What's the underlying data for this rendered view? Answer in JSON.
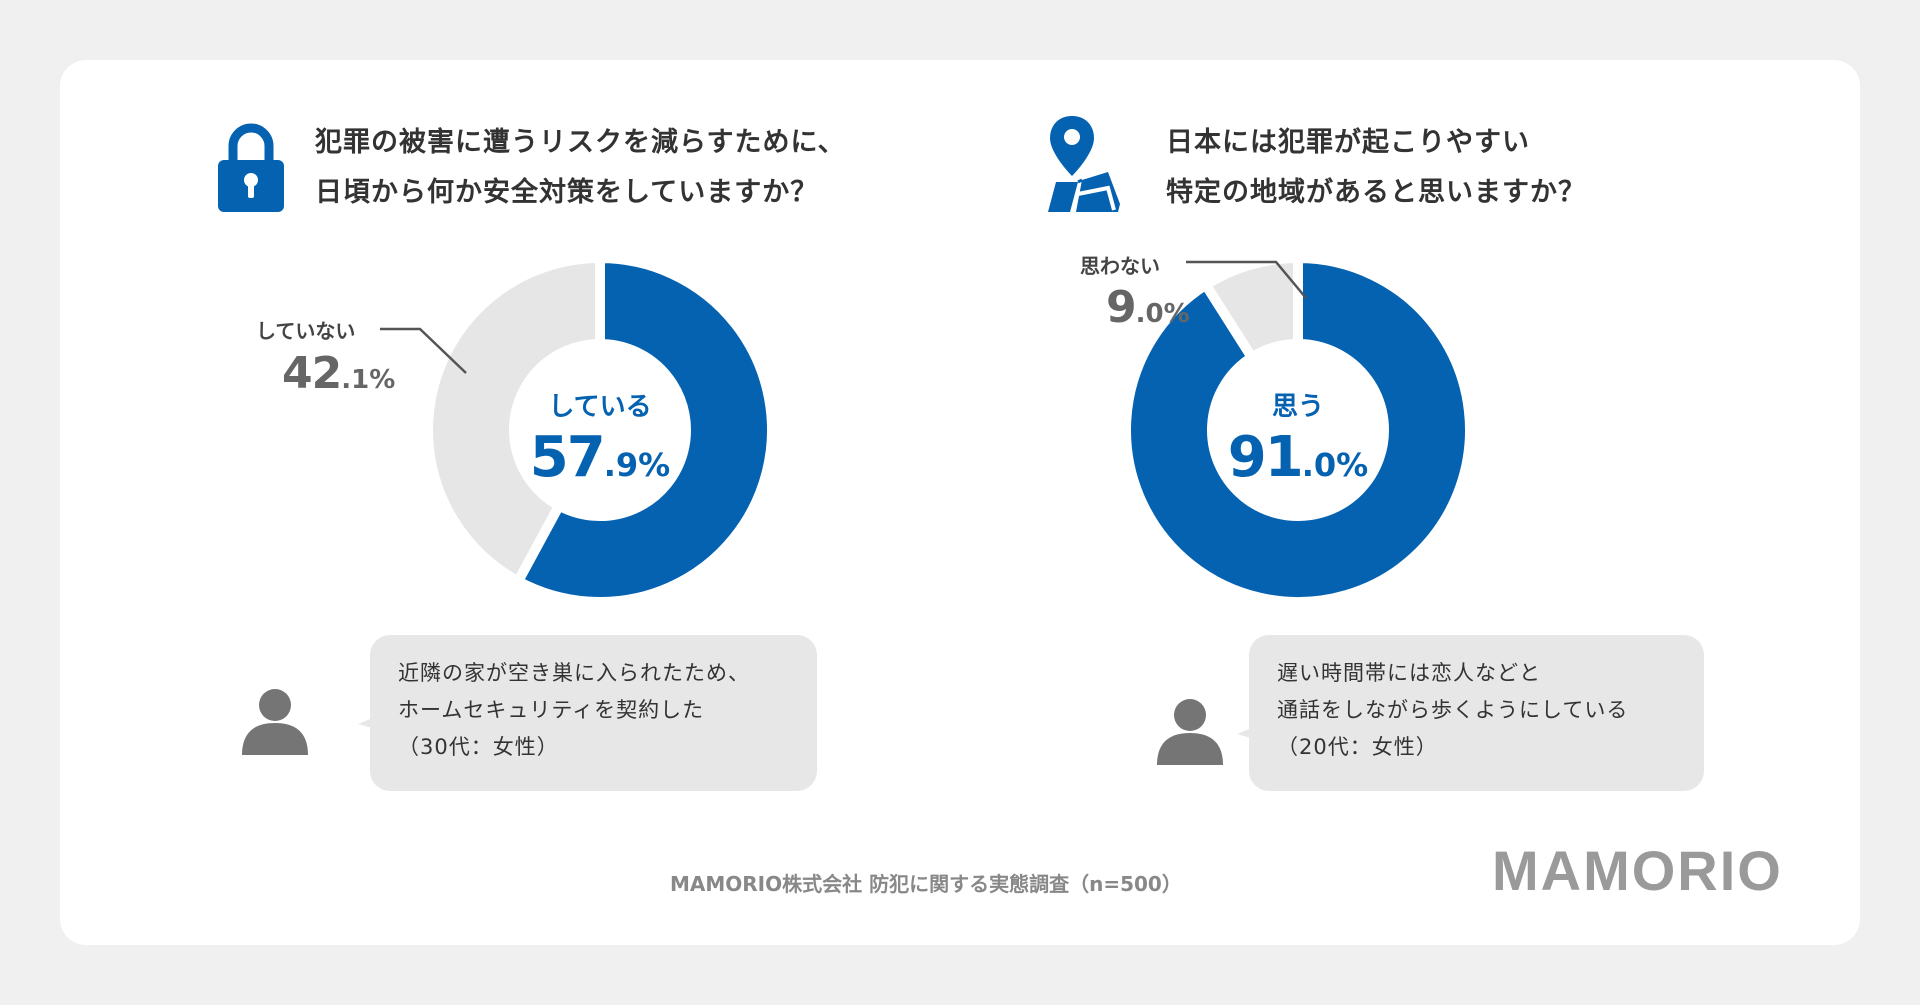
{
  "colors": {
    "primary": "#0562b1",
    "secondary": "#e6e6e6",
    "text_dark": "#333333",
    "text_gray": "#666666",
    "brand_gray": "#9a9a9a"
  },
  "chart_data": [
    {
      "type": "pie",
      "title_lines": [
        "犯罪の被害に遭うリスクを減らすために、",
        "日頃から何か安全対策をしていますか？"
      ],
      "icon": "lock-icon",
      "slices": [
        {
          "label": "している",
          "value": 57.9,
          "pct_int": "57",
          "pct_dec": ".9%",
          "color": "#0562b1"
        },
        {
          "label": "していない",
          "value": 42.1,
          "pct_int": "42",
          "pct_dec": ".1%",
          "color": "#e6e6e6"
        }
      ],
      "comment_lines": [
        "近隣の家が空き巣に入られたため、",
        "ホームセキュリティを契約した",
        "（30代：女性）"
      ]
    },
    {
      "type": "pie",
      "title_lines": [
        "日本には犯罪が起こりやすい",
        "特定の地域があると思いますか？"
      ],
      "icon": "map-pin-icon",
      "slices": [
        {
          "label": "思う",
          "value": 91.0,
          "pct_int": "91",
          "pct_dec": ".0%",
          "color": "#0562b1"
        },
        {
          "label": "思わない",
          "value": 9.0,
          "pct_int": "9",
          "pct_dec": ".0%",
          "color": "#e6e6e6"
        }
      ],
      "comment_lines": [
        "遅い時間帯には恋人などと",
        "通話をしながら歩くようにしている",
        "（20代：女性）"
      ]
    }
  ],
  "footer": {
    "source": "MAMORIO株式会社 防犯に関する実態調査（n=500）",
    "brand": "MAMORIO"
  }
}
